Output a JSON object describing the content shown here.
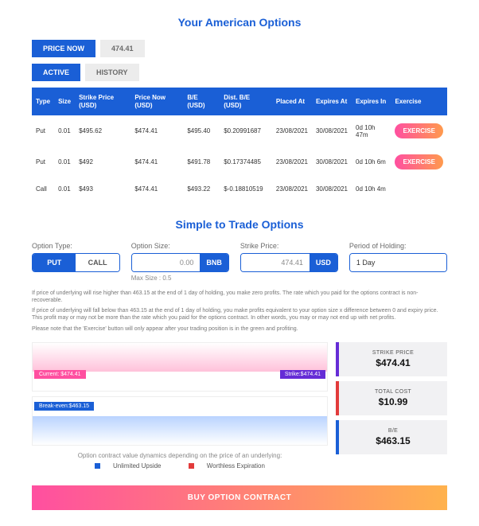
{
  "american": {
    "title": "Your American Options",
    "priceNowLabel": "PRICE NOW",
    "priceNowValue": "474.41",
    "tabs": {
      "active": "ACTIVE",
      "history": "HISTORY"
    },
    "headers": {
      "type": "Type",
      "size": "Size",
      "strike": "Strike Price (USD)",
      "priceNow": "Price Now (USD)",
      "be": "B/E (USD)",
      "dist": "Dist. B/E (USD)",
      "placed": "Placed At",
      "expires": "Expires At",
      "expiresIn": "Expires In",
      "exercise": "Exercise"
    },
    "rows": [
      {
        "type": "Put",
        "size": "0.01",
        "strike": "$495.62",
        "priceNow": "$474.41",
        "be": "$495.40",
        "dist": "$0.20991687",
        "distCls": "green",
        "placed": "23/08/2021",
        "expires": "30/08/2021",
        "expiresIn": "0d 10h 47m",
        "exLabel": "EXERCISE",
        "showEx": true
      },
      {
        "type": "Put",
        "size": "0.01",
        "strike": "$492",
        "priceNow": "$474.41",
        "be": "$491.78",
        "dist": "$0.17374485",
        "distCls": "green",
        "placed": "23/08/2021",
        "expires": "30/08/2021",
        "expiresIn": "0d 10h 6m",
        "exLabel": "EXERCISE",
        "showEx": true
      },
      {
        "type": "Call",
        "size": "0.01",
        "strike": "$493",
        "priceNow": "$474.41",
        "be": "$493.22",
        "dist": "$-0.18810519",
        "distCls": "red",
        "placed": "23/08/2021",
        "expires": "30/08/2021",
        "expiresIn": "0d 10h 4m",
        "exLabel": "",
        "showEx": false
      }
    ]
  },
  "trade": {
    "title": "Simple to Trade Options",
    "optionTypeLabel": "Option Type:",
    "put": "PUT",
    "call": "CALL",
    "optionSizeLabel": "Option Size:",
    "optionSizeValue": "0.00",
    "optionSizeUnit": "BNB",
    "maxSize": "Max Size : 0.5",
    "strikeLabel": "Strike Price:",
    "strikeValue": "474.41",
    "strikeUnit": "USD",
    "periodLabel": "Period of Holding:",
    "periodValue": "1 Day",
    "fineprint": [
      "If price of underlying will rise higher than 463.15 at the end of 1 day of holding, you make zero profits. The rate which you paid for the options contract is non-recoverable.",
      "If price of underlying will fall below than 463.15 at the end of 1 day of holding, you make profits equivalent to your option size x difference between 0 and expiry price. This profit may or may not be more than the rate which you paid for the options contract. In other words, you may or may not end up with net profits.",
      "Please note that the 'Exercise' button will only appear after your trading position is in the green and profiting."
    ],
    "chart": {
      "currentLabel": "Current: $474.41",
      "strikeLabel": "Strike:$474.41",
      "breakevenLabel": "Break-even:$463.15",
      "pinkColor": "#ffc1da",
      "blueColor": "#b9d3ff",
      "caption": "Option contract value dynamics depending on the price of an underlying:",
      "legendUp": "Unlimited Upside",
      "legendDown": "Worthless Expiration"
    },
    "stats": {
      "strikeLabel": "STRIKE PRICE",
      "strikeValue": "$474.41",
      "costLabel": "TOTAL COST",
      "costValue": "$10.99",
      "beLabel": "B/E",
      "beValue": "$463.15"
    },
    "buy": "BUY OPTION CONTRACT"
  }
}
